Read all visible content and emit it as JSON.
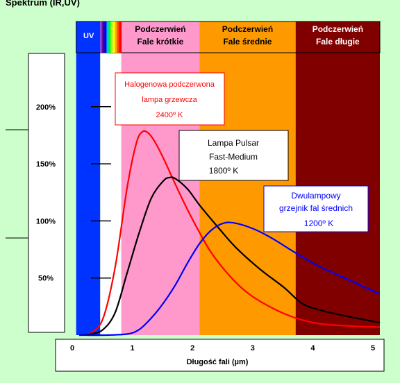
{
  "title": "Spektrum (IR,UV)",
  "chart_data": {
    "type": "line",
    "xlabel": "Długość fali (µm)",
    "xlim": [
      0,
      5
    ],
    "x_ticks": [
      "0",
      "1",
      "2",
      "3",
      "4",
      "5"
    ],
    "ylim": [
      0,
      250
    ],
    "y_ticks": [
      "50%",
      "100%",
      "150%",
      "200%"
    ],
    "y_tick_values": [
      50,
      100,
      150,
      200
    ],
    "grid": false,
    "bands": [
      {
        "label": "UV",
        "sublabel": "",
        "x_start": -0.05,
        "x_end": 0.35,
        "color": "#0033ff",
        "label_color": "#ffffff"
      },
      {
        "label": "",
        "sublabel": "",
        "x_start": 0.35,
        "x_end": 0.7,
        "color": "#ffffff",
        "label_color": "#000000"
      },
      {
        "label": "Podczerwień",
        "sublabel": "Fale krótkie",
        "x_start": 0.7,
        "x_end": 2.0,
        "color": "#ff99cc",
        "label_color": "#000000"
      },
      {
        "label": "Podczerwień",
        "sublabel": "Fale średnie",
        "x_start": 2.0,
        "x_end": 3.6,
        "color": "#ff9900",
        "label_color": "#000000"
      },
      {
        "label": "Podczerwień",
        "sublabel": "Fale długie",
        "x_start": 3.6,
        "x_end": 5.0,
        "color": "#800000",
        "label_color": "#ffffff"
      }
    ],
    "rainbow_colors": [
      "#8a2be2",
      "#4b0082",
      "#0000ff",
      "#00bfff",
      "#00ff00",
      "#adff2f",
      "#ffff00",
      "#ffa500",
      "#ff4500",
      "#ff0000"
    ],
    "series": [
      {
        "name": "Halogenowa podczerwona lampa grzewcza 2400º K",
        "color": "#ff0000",
        "x": [
          0.0,
          0.2,
          0.4,
          0.6,
          0.8,
          0.95,
          1.05,
          1.15,
          1.25,
          1.4,
          1.6,
          1.8,
          2.0,
          2.2,
          2.5,
          2.8,
          3.2,
          3.6,
          4.0,
          4.5,
          5.0
        ],
        "y": [
          0,
          2,
          15,
          60,
          130,
          168,
          178,
          177,
          170,
          155,
          132,
          110,
          90,
          72,
          52,
          37,
          24,
          15,
          10,
          8,
          7
        ]
      },
      {
        "name": "Lampa Pulsar Fast-Medium 1800º K",
        "color": "#000000",
        "x": [
          0.0,
          0.2,
          0.4,
          0.6,
          0.8,
          1.0,
          1.2,
          1.4,
          1.5,
          1.6,
          1.8,
          2.0,
          2.3,
          2.6,
          3.0,
          3.4,
          3.7,
          4.0,
          4.5,
          5.0
        ],
        "y": [
          0,
          1,
          5,
          20,
          55,
          90,
          120,
          135,
          138,
          137,
          128,
          114,
          95,
          77,
          58,
          42,
          28,
          22,
          16,
          11
        ]
      },
      {
        "name": "Dwulampowy grzejnik fal średnich 1200º K",
        "color": "#0000ff",
        "x": [
          0.0,
          0.4,
          0.8,
          1.0,
          1.2,
          1.4,
          1.6,
          1.8,
          2.0,
          2.2,
          2.4,
          2.6,
          2.9,
          3.2,
          3.6,
          4.0,
          4.5,
          5.0
        ],
        "y": [
          0,
          0,
          1,
          5,
          15,
          28,
          44,
          63,
          80,
          92,
          98,
          98,
          93,
          85,
          72,
          60,
          48,
          36
        ]
      }
    ],
    "annotations": [
      {
        "lines": [
          "Halogenowa  podczerwona",
          "lampa grzewcza",
          "2400º K"
        ],
        "color": "#ff0000",
        "border": "#ff0000"
      },
      {
        "lines": [
          "Lampa Pulsar",
          "Fast-Medium",
          "1800º K"
        ],
        "color": "#000000",
        "border": "#000000"
      },
      {
        "lines": [
          "Dwulampowy",
          "grzejnik fal średnich",
          "1200º K"
        ],
        "color": "#0000ff",
        "border": "#0000ff"
      }
    ]
  }
}
